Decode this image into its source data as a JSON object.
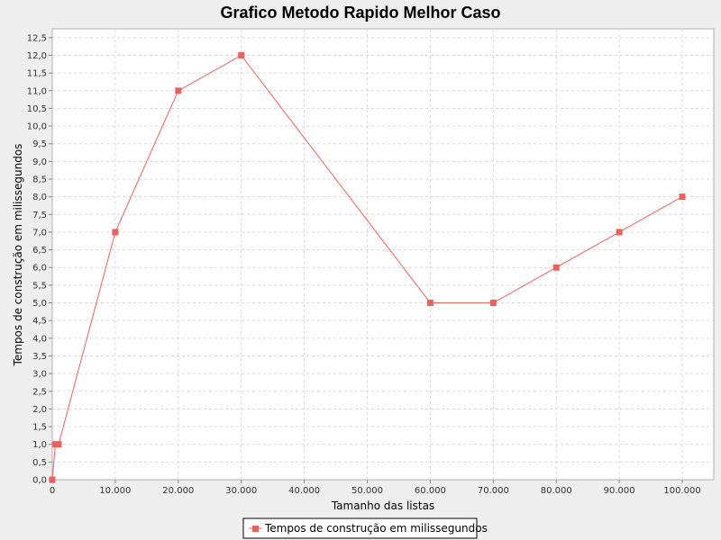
{
  "chart_data": {
    "type": "line",
    "title": "Grafico Metodo Rapido Melhor Caso",
    "xlabel": "Tamanho das listas",
    "ylabel": "Tempos de construção em milissegundos",
    "xlim": [
      0,
      105000
    ],
    "ylim": [
      0,
      12.75
    ],
    "x_ticks": [
      0,
      10000,
      20000,
      30000,
      40000,
      50000,
      60000,
      70000,
      80000,
      90000,
      100000
    ],
    "x_tick_labels": [
      "0",
      "10.000",
      "20.000",
      "30.000",
      "40.000",
      "50.000",
      "60.000",
      "70.000",
      "80.000",
      "90.000",
      "100.000"
    ],
    "y_ticks": [
      0,
      0.5,
      1,
      1.5,
      2,
      2.5,
      3,
      3.5,
      4,
      4.5,
      5,
      5.5,
      6,
      6.5,
      7,
      7.5,
      8,
      8.5,
      9,
      9.5,
      10,
      10.5,
      11,
      11.5,
      12,
      12.5
    ],
    "y_tick_labels": [
      "0,0",
      "0,5",
      "1,0",
      "1,5",
      "2,0",
      "2,5",
      "3,0",
      "3,5",
      "4,0",
      "4,5",
      "5,0",
      "5,5",
      "6,0",
      "6,5",
      "7,0",
      "7,5",
      "8,0",
      "8,5",
      "9,0",
      "9,5",
      "10,0",
      "10,5",
      "11,0",
      "11,5",
      "12,0",
      "12,5"
    ],
    "grid": true,
    "legend_position": "bottom",
    "series": [
      {
        "name": "Tempos de construção em milissegundos",
        "color": "#e8625e",
        "marker": "square",
        "x": [
          0,
          500,
          1000,
          10000,
          20000,
          30000,
          60000,
          70000,
          80000,
          90000,
          100000
        ],
        "y": [
          0,
          1,
          1,
          7,
          11,
          12,
          5,
          5,
          6,
          7,
          8
        ]
      }
    ]
  }
}
